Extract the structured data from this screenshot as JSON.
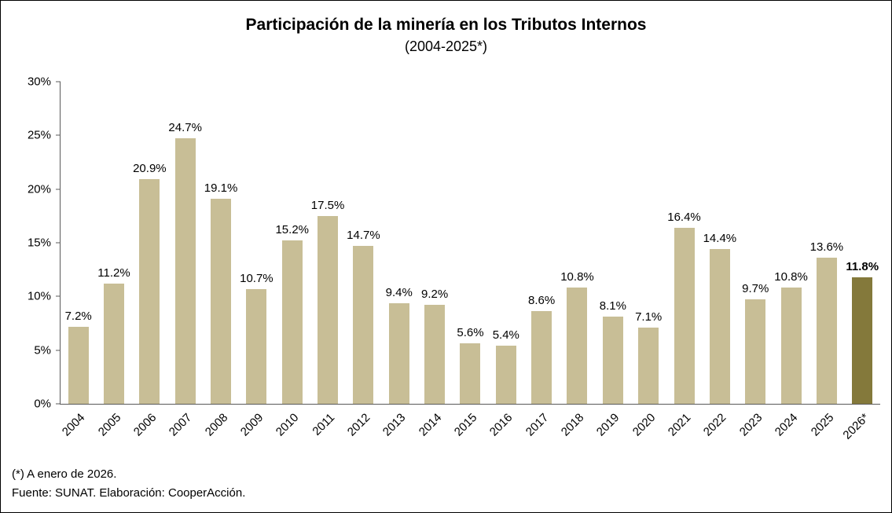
{
  "chart": {
    "title": "Participación de la minería en los Tributos Internos",
    "subtitle": "(2004-2025*)"
  },
  "footer": {
    "note1": "(*) A enero de 2026.",
    "note2": "Fuente: SUNAT. Elaboración: CooperAcción."
  },
  "colors": {
    "bar": "#C8BE96",
    "highlight_bar": "#84793B",
    "axis": "#595959",
    "text": "#000000"
  },
  "chart_data": {
    "type": "bar",
    "title": "Participación de la minería en los Tributos Internos",
    "subtitle": "(2004-2025*)",
    "categories": [
      "2004",
      "2005",
      "2006",
      "2007",
      "2008",
      "2009",
      "2010",
      "2011",
      "2012",
      "2013",
      "2014",
      "2015",
      "2016",
      "2017",
      "2018",
      "2019",
      "2020",
      "2021",
      "2022",
      "2023",
      "2024",
      "2025",
      "2026*"
    ],
    "values": [
      7.2,
      11.2,
      20.9,
      24.7,
      19.1,
      10.7,
      15.2,
      17.5,
      14.7,
      9.4,
      9.2,
      5.6,
      5.4,
      8.6,
      10.8,
      8.1,
      7.1,
      16.4,
      14.4,
      9.7,
      10.8,
      13.6,
      11.8
    ],
    "value_labels": [
      "7.2%",
      "11.2%",
      "20.9%",
      "24.7%",
      "19.1%",
      "10.7%",
      "15.2%",
      "17.5%",
      "14.7%",
      "9.4%",
      "9.2%",
      "5.6%",
      "5.4%",
      "8.6%",
      "10.8%",
      "8.1%",
      "7.1%",
      "16.4%",
      "14.4%",
      "9.7%",
      "10.8%",
      "13.6%",
      "11.8%"
    ],
    "highlight_index": 22,
    "xlabel": "",
    "ylabel": "",
    "ylim": [
      0,
      30
    ],
    "y_ticks": [
      "0%",
      "5%",
      "10%",
      "15%",
      "20%",
      "25%",
      "30%"
    ],
    "grid": false,
    "legend": false
  }
}
